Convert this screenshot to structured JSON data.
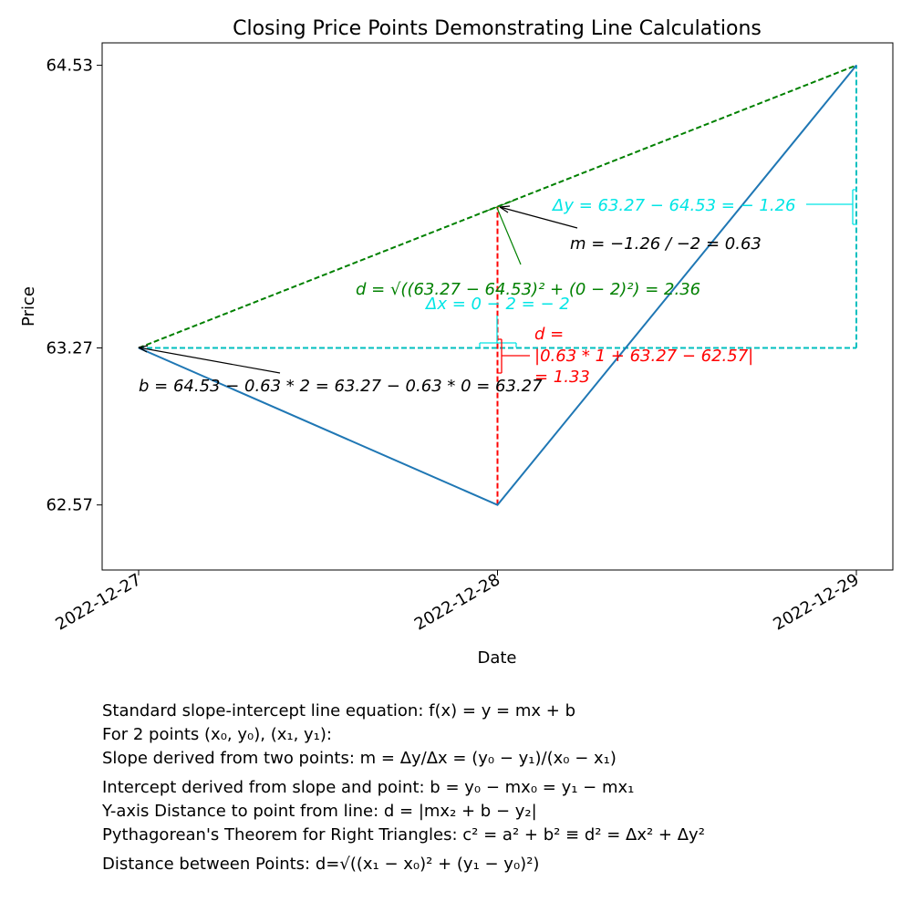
{
  "chart_data": {
    "type": "line",
    "title": "Closing Price Points Demonstrating Line Calculations",
    "xlabel": "Date",
    "ylabel": "Price",
    "x": [
      "2022-12-27",
      "2022-12-28",
      "2022-12-29"
    ],
    "ytick_labels": [
      "62.57",
      "63.27",
      "64.53"
    ],
    "ylim": [
      62.28,
      64.63
    ],
    "series": [
      {
        "values": [
          63.27,
          62.57,
          64.53
        ],
        "color": "#1f77b4"
      }
    ],
    "reference_lines": [
      {
        "kind": "fitted-line",
        "from": [
          "2022-12-27",
          63.27
        ],
        "to": [
          "2022-12-29",
          64.53
        ],
        "color": "#008000",
        "style": "dashed"
      },
      {
        "kind": "delta-x",
        "from": [
          "2022-12-27",
          63.27
        ],
        "to": [
          "2022-12-29",
          63.27
        ],
        "color": "#00bfbf",
        "style": "dashed"
      },
      {
        "kind": "delta-y",
        "from": [
          "2022-12-29",
          63.27
        ],
        "to": [
          "2022-12-29",
          64.53
        ],
        "color": "#00bfbf",
        "style": "dashed"
      },
      {
        "kind": "vertical-distance",
        "from": [
          "2022-12-28",
          62.57
        ],
        "to": [
          "2022-12-28",
          63.9
        ],
        "color": "#ff0000",
        "style": "dashed"
      }
    ],
    "annotations": {
      "delta_y": "Δy = 63.27 − 64.53 = − 1.26",
      "slope": "m = −1.26 / −2 = 0.63",
      "distance_points": "d = √((63.27 − 64.53)² + (0 − 2)²) = 2.36",
      "delta_x": "Δx = 0 − 2 = − 2",
      "distance_line_1": "d =",
      "distance_line_2": "|0.63 * 1 + 63.27 − 62.57|",
      "distance_line_3": "= 1.33",
      "intercept": "b = 64.53 − 0.63 * 2 = 63.27 − 0.63 * 0 = 63.27"
    },
    "grid": false
  },
  "notes": [
    "Standard slope-intercept line equation: f(x) = y = mx + b",
    "For 2 points (x₀, y₀), (x₁, y₁):",
    "Slope derived from two points: m = Δy/Δx = (y₀ − y₁)/(x₀ − x₁)",
    "Intercept derived from slope and point: b = y₀ − mx₀ = y₁ − mx₁",
    "Y-axis Distance to point from line: d = |mx₂ + b − y₂|",
    "Pythagorean's Theorem for Right Triangles: c² = a² + b² ≡  d² = Δx² + Δy²",
    "Distance between Points: d=√((x₁ − x₀)² + (y₁ − y₀)²)"
  ]
}
